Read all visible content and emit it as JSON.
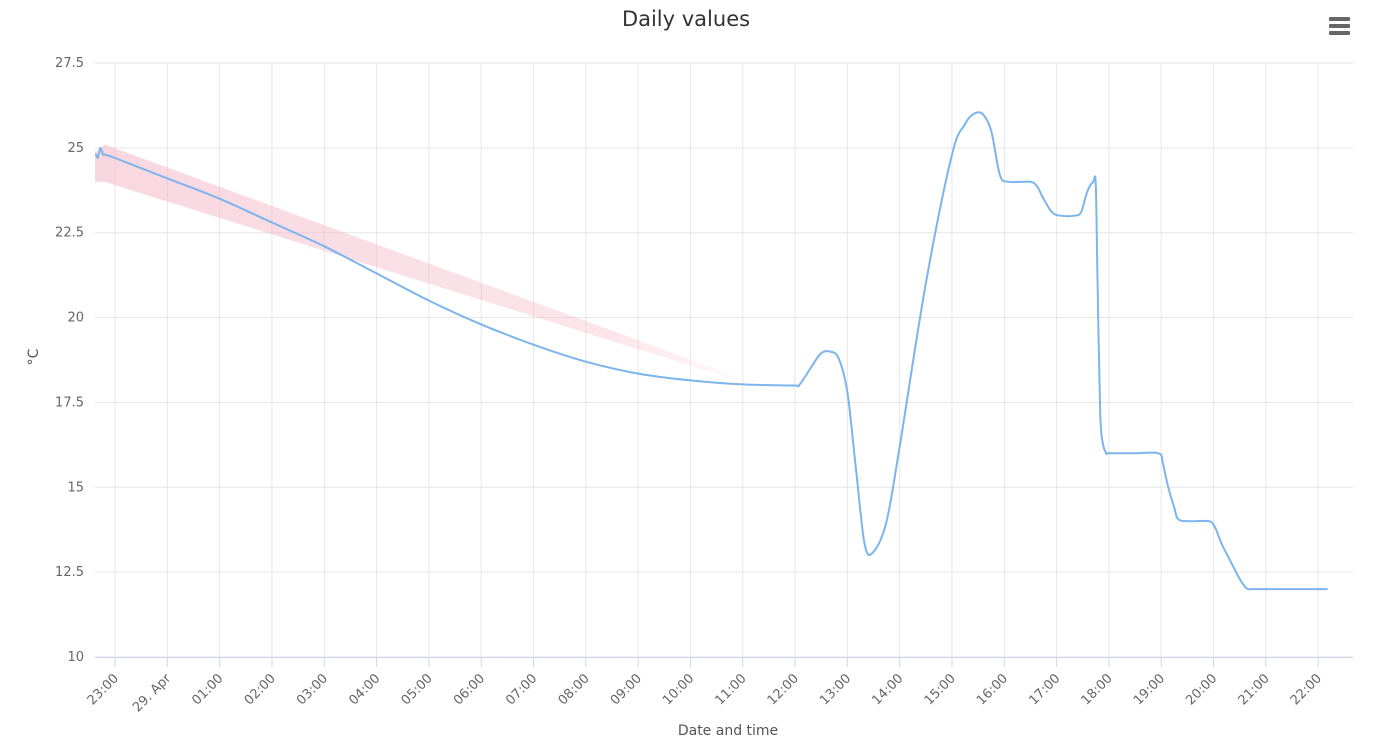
{
  "chart_data": {
    "type": "line",
    "title": "Daily values",
    "xlabel": "Date and time",
    "ylabel": "°C",
    "ylim": [
      10,
      27.5
    ],
    "yticks": [
      10,
      12.5,
      15,
      17.5,
      20,
      22.5,
      25,
      27.5
    ],
    "ytick_labels": [
      "10",
      "12.5",
      "15",
      "17.5",
      "20",
      "22.5",
      "25",
      "27.5"
    ],
    "xlim": [
      "28. Apr 22:37",
      "29. Apr 22:40"
    ],
    "xtick_labels": [
      "23:00",
      "29. Apr",
      "01:00",
      "02:00",
      "03:00",
      "04:00",
      "05:00",
      "06:00",
      "07:00",
      "08:00",
      "09:00",
      "10:00",
      "11:00",
      "12:00",
      "13:00",
      "14:00",
      "15:00",
      "16:00",
      "17:00",
      "18:00",
      "19:00",
      "20:00",
      "21:00",
      "22:00"
    ],
    "grid": true,
    "colors": {
      "line": "#7cb5ec",
      "band": "#f4b6c6"
    },
    "series": [
      {
        "type": "line",
        "x": [
          "28. Apr 22:38",
          "28. Apr 22:40",
          "28. Apr 22:41",
          "28. Apr 22:42",
          "28. Apr 22:43",
          "28. Apr 22:45",
          "28. Apr 22:46",
          "28. Apr 22:48",
          "28. Apr 23:00",
          "29. Apr 00:00",
          "29. Apr 01:00",
          "29. Apr 02:00",
          "29. Apr 03:00",
          "29. Apr 04:00",
          "29. Apr 05:00",
          "29. Apr 06:00",
          "29. Apr 07:00",
          "29. Apr 08:00",
          "29. Apr 09:00",
          "29. Apr 10:00",
          "29. Apr 11:00",
          "29. Apr 11:58",
          "29. Apr 12:05",
          "29. Apr 12:20",
          "29. Apr 12:30",
          "29. Apr 12:40",
          "29. Apr 12:50",
          "29. Apr 13:00",
          "29. Apr 13:10",
          "29. Apr 13:20",
          "29. Apr 13:30",
          "29. Apr 13:45",
          "29. Apr 14:00",
          "29. Apr 14:30",
          "29. Apr 15:00",
          "29. Apr 15:15",
          "29. Apr 15:25",
          "29. Apr 15:35",
          "29. Apr 15:45",
          "29. Apr 15:55",
          "29. Apr 16:05",
          "29. Apr 16:30",
          "29. Apr 16:38",
          "29. Apr 16:45",
          "29. Apr 16:55",
          "29. Apr 17:05",
          "29. Apr 17:20",
          "29. Apr 17:28",
          "29. Apr 17:35",
          "29. Apr 17:42",
          "29. Apr 17:45",
          "29. Apr 17:47",
          "29. Apr 17:50",
          "29. Apr 17:53",
          "29. Apr 17:57",
          "29. Apr 18:00",
          "29. Apr 18:30",
          "29. Apr 18:57",
          "29. Apr 19:02",
          "29. Apr 19:08",
          "29. Apr 19:15",
          "29. Apr 19:20",
          "29. Apr 19:35",
          "29. Apr 19:55",
          "29. Apr 20:02",
          "29. Apr 20:10",
          "29. Apr 20:20",
          "29. Apr 20:30",
          "29. Apr 20:38",
          "29. Apr 20:45",
          "29. Apr 21:00",
          "29. Apr 22:00",
          "29. Apr 22:10"
        ],
        "y": [
          24.8,
          24.7,
          24.8,
          24.9,
          25.0,
          24.9,
          24.8,
          24.8,
          24.7,
          24.1,
          23.5,
          22.8,
          22.1,
          21.3,
          20.5,
          19.8,
          19.2,
          18.7,
          18.35,
          18.15,
          18.03,
          18.0,
          18.02,
          18.6,
          18.95,
          19.0,
          18.8,
          17.8,
          15.5,
          13.3,
          13.1,
          14.0,
          16.2,
          21.0,
          24.8,
          25.7,
          26.0,
          26.0,
          25.5,
          24.2,
          24.0,
          24.0,
          23.85,
          23.5,
          23.1,
          23.0,
          23.0,
          23.1,
          23.7,
          24.0,
          23.9,
          21.0,
          17.2,
          16.3,
          16.0,
          16.0,
          16.0,
          16.0,
          15.7,
          15.0,
          14.4,
          14.05,
          14.0,
          14.0,
          13.8,
          13.3,
          12.8,
          12.3,
          12.02,
          12.0,
          12.0,
          12.0,
          12.0
        ]
      },
      {
        "type": "arearange",
        "x": [
          "28. Apr 22:37",
          "28. Apr 22:40",
          "28. Apr 22:48",
          "29. Apr 11:00"
        ],
        "low": [
          24.0,
          24.0,
          24.0,
          18.1
        ],
        "high": [
          24.9,
          24.9,
          25.1,
          18.2
        ]
      }
    ],
    "legend": "none"
  },
  "toolbar": {
    "menu_icon": "hamburger-icon"
  }
}
